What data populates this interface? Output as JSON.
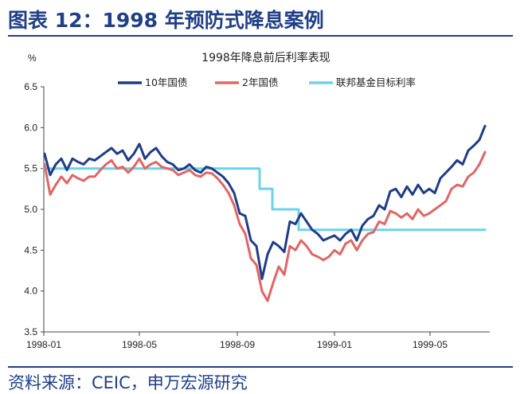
{
  "figure": {
    "title": "图表 12：1998 年预防式降息案例",
    "source": "资料来源：CEIC，申万宏源研究"
  },
  "chart_data": {
    "type": "line",
    "title": "1998年降息前后利率表现",
    "ylabel": "%",
    "xlabel": "",
    "ylim": [
      3.5,
      6.5
    ],
    "yticks": [
      3.5,
      4.0,
      4.5,
      5.0,
      5.5,
      6.0,
      6.5
    ],
    "ytick_labels": [
      "3.5",
      "4.0",
      "4.5",
      "5.0",
      "5.5",
      "6.0",
      "6.5"
    ],
    "xlim": [
      "1998-01-01",
      "1999-07-15"
    ],
    "xticks": [
      "1998-01-01",
      "1998-05-01",
      "1998-09-01",
      "1999-01-01",
      "1999-05-01"
    ],
    "xtick_labels": [
      "1998-01",
      "1998-05",
      "1998-09",
      "1999-01",
      "1999-05"
    ],
    "legend_position": "top",
    "grid": false,
    "series": [
      {
        "name": "10年国债",
        "color": "#1f3c88",
        "x": [
          "1998-01-02",
          "1998-01-09",
          "1998-01-16",
          "1998-01-23",
          "1998-01-30",
          "1998-02-06",
          "1998-02-13",
          "1998-02-20",
          "1998-02-27",
          "1998-03-06",
          "1998-03-13",
          "1998-03-20",
          "1998-03-27",
          "1998-04-03",
          "1998-04-10",
          "1998-04-17",
          "1998-04-24",
          "1998-05-01",
          "1998-05-08",
          "1998-05-15",
          "1998-05-22",
          "1998-05-29",
          "1998-06-05",
          "1998-06-12",
          "1998-06-19",
          "1998-06-26",
          "1998-07-03",
          "1998-07-10",
          "1998-07-17",
          "1998-07-24",
          "1998-07-31",
          "1998-08-07",
          "1998-08-14",
          "1998-08-21",
          "1998-08-28",
          "1998-09-04",
          "1998-09-11",
          "1998-09-18",
          "1998-09-25",
          "1998-10-02",
          "1998-10-09",
          "1998-10-16",
          "1998-10-23",
          "1998-10-30",
          "1998-11-06",
          "1998-11-13",
          "1998-11-20",
          "1998-11-27",
          "1998-12-04",
          "1998-12-11",
          "1998-12-18",
          "1998-12-25",
          "1999-01-01",
          "1999-01-08",
          "1999-01-15",
          "1999-01-22",
          "1999-01-29",
          "1999-02-05",
          "1999-02-12",
          "1999-02-19",
          "1999-02-26",
          "1999-03-05",
          "1999-03-12",
          "1999-03-19",
          "1999-03-26",
          "1999-04-02",
          "1999-04-09",
          "1999-04-16",
          "1999-04-23",
          "1999-04-30",
          "1999-05-07",
          "1999-05-14",
          "1999-05-21",
          "1999-05-28",
          "1999-06-04",
          "1999-06-11",
          "1999-06-18",
          "1999-06-25",
          "1999-07-02",
          "1999-07-09"
        ],
        "values": [
          5.68,
          5.42,
          5.55,
          5.62,
          5.48,
          5.62,
          5.58,
          5.55,
          5.62,
          5.6,
          5.65,
          5.7,
          5.75,
          5.68,
          5.72,
          5.6,
          5.68,
          5.8,
          5.62,
          5.7,
          5.75,
          5.65,
          5.58,
          5.55,
          5.48,
          5.5,
          5.55,
          5.48,
          5.45,
          5.52,
          5.5,
          5.45,
          5.4,
          5.32,
          5.2,
          4.95,
          4.92,
          4.62,
          4.55,
          4.15,
          4.45,
          4.6,
          4.55,
          4.48,
          4.85,
          4.82,
          4.95,
          4.85,
          4.75,
          4.7,
          4.62,
          4.65,
          4.68,
          4.62,
          4.7,
          4.75,
          4.62,
          4.8,
          4.88,
          4.92,
          5.05,
          5.0,
          5.22,
          5.25,
          5.15,
          5.28,
          5.18,
          5.3,
          5.2,
          5.25,
          5.2,
          5.38,
          5.45,
          5.52,
          5.6,
          5.55,
          5.72,
          5.78,
          5.85,
          6.02
        ]
      },
      {
        "name": "2年国债",
        "color": "#e06666",
        "x": [
          "1998-01-02",
          "1998-01-09",
          "1998-01-16",
          "1998-01-23",
          "1998-01-30",
          "1998-02-06",
          "1998-02-13",
          "1998-02-20",
          "1998-02-27",
          "1998-03-06",
          "1998-03-13",
          "1998-03-20",
          "1998-03-27",
          "1998-04-03",
          "1998-04-10",
          "1998-04-17",
          "1998-04-24",
          "1998-05-01",
          "1998-05-08",
          "1998-05-15",
          "1998-05-22",
          "1998-05-29",
          "1998-06-05",
          "1998-06-12",
          "1998-06-19",
          "1998-06-26",
          "1998-07-03",
          "1998-07-10",
          "1998-07-17",
          "1998-07-24",
          "1998-07-31",
          "1998-08-07",
          "1998-08-14",
          "1998-08-21",
          "1998-08-28",
          "1998-09-04",
          "1998-09-11",
          "1998-09-18",
          "1998-09-25",
          "1998-10-02",
          "1998-10-09",
          "1998-10-16",
          "1998-10-23",
          "1998-10-30",
          "1998-11-06",
          "1998-11-13",
          "1998-11-20",
          "1998-11-27",
          "1998-12-04",
          "1998-12-11",
          "1998-12-18",
          "1998-12-25",
          "1999-01-01",
          "1999-01-08",
          "1999-01-15",
          "1999-01-22",
          "1999-01-29",
          "1999-02-05",
          "1999-02-12",
          "1999-02-19",
          "1999-02-26",
          "1999-03-05",
          "1999-03-12",
          "1999-03-19",
          "1999-03-26",
          "1999-04-02",
          "1999-04-09",
          "1999-04-16",
          "1999-04-23",
          "1999-04-30",
          "1999-05-07",
          "1999-05-14",
          "1999-05-21",
          "1999-05-28",
          "1999-06-04",
          "1999-06-11",
          "1999-06-18",
          "1999-06-25",
          "1999-07-02",
          "1999-07-09"
        ],
        "values": [
          5.55,
          5.18,
          5.3,
          5.4,
          5.32,
          5.42,
          5.38,
          5.35,
          5.4,
          5.4,
          5.48,
          5.55,
          5.6,
          5.5,
          5.52,
          5.45,
          5.52,
          5.62,
          5.5,
          5.55,
          5.58,
          5.52,
          5.5,
          5.48,
          5.42,
          5.45,
          5.48,
          5.42,
          5.4,
          5.45,
          5.44,
          5.38,
          5.3,
          5.2,
          5.05,
          4.82,
          4.7,
          4.4,
          4.32,
          4.0,
          3.88,
          4.1,
          4.3,
          4.2,
          4.55,
          4.5,
          4.62,
          4.55,
          4.45,
          4.42,
          4.38,
          4.42,
          4.5,
          4.45,
          4.58,
          4.62,
          4.5,
          4.62,
          4.7,
          4.72,
          4.85,
          4.82,
          4.98,
          4.95,
          4.9,
          4.95,
          4.88,
          5.0,
          4.92,
          4.95,
          5.0,
          5.05,
          5.1,
          5.25,
          5.3,
          5.28,
          5.4,
          5.45,
          5.55,
          5.7
        ]
      },
      {
        "name": "联邦基金目标利率",
        "color": "#6cd3ec",
        "step": true,
        "x": [
          "1998-01-01",
          "1998-09-29",
          "1998-10-15",
          "1998-11-17",
          "1999-06-30",
          "1999-07-09"
        ],
        "values": [
          5.5,
          5.25,
          5.0,
          4.75,
          4.75,
          4.75
        ]
      }
    ]
  }
}
